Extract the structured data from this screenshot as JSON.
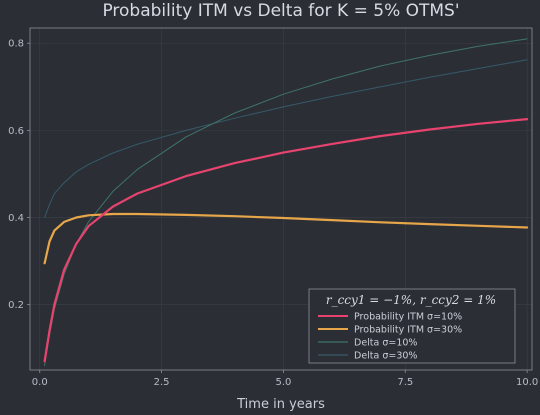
{
  "chart_data": {
    "type": "line",
    "title": "Probability ITM vs Delta for K = 5% OTMS'",
    "xlabel": "Time in years",
    "ylabel": "",
    "xlim": [
      -0.2,
      10.1
    ],
    "ylim": [
      0.05,
      0.835
    ],
    "x_ticks": [
      0.0,
      2.5,
      5.0,
      7.5,
      10.0
    ],
    "x_tick_labels": [
      "0.0",
      "2.5",
      "5.0",
      "7.5",
      "10.0"
    ],
    "y_ticks": [
      0.2,
      0.4,
      0.6,
      0.8
    ],
    "y_tick_labels": [
      "0.2",
      "0.4",
      "0.6",
      "0.8"
    ],
    "grid": true,
    "legend_title": "r_ccy1 = −1%, r_ccy2 = 1%",
    "legend_position": "bottom-right",
    "x": [
      0.1,
      0.2,
      0.3,
      0.5,
      0.75,
      1.0,
      1.5,
      2.0,
      3.0,
      4.0,
      5.0,
      6.0,
      7.0,
      8.0,
      9.0,
      10.0
    ],
    "series": [
      {
        "name": "Probability ITM σ=10%",
        "color": "#e8436e",
        "width": 2.2,
        "values": [
          0.07,
          0.14,
          0.2,
          0.28,
          0.34,
          0.38,
          0.425,
          0.455,
          0.495,
          0.525,
          0.549,
          0.569,
          0.587,
          0.602,
          0.615,
          0.626
        ]
      },
      {
        "name": "Probability ITM σ=30%",
        "color": "#e8a64a",
        "width": 2.2,
        "values": [
          0.295,
          0.345,
          0.37,
          0.39,
          0.4,
          0.405,
          0.408,
          0.408,
          0.406,
          0.403,
          0.399,
          0.394,
          0.389,
          0.385,
          0.381,
          0.377
        ]
      },
      {
        "name": "Delta σ=10%",
        "color": "#3f7368",
        "width": 1,
        "values": [
          0.06,
          0.13,
          0.19,
          0.27,
          0.34,
          0.39,
          0.46,
          0.51,
          0.585,
          0.64,
          0.683,
          0.718,
          0.748,
          0.772,
          0.793,
          0.81
        ]
      },
      {
        "name": "Delta σ=30%",
        "color": "#355a6a",
        "width": 1,
        "values": [
          0.4,
          0.43,
          0.455,
          0.48,
          0.505,
          0.522,
          0.548,
          0.568,
          0.6,
          0.628,
          0.654,
          0.678,
          0.7,
          0.722,
          0.742,
          0.762
        ]
      }
    ]
  }
}
